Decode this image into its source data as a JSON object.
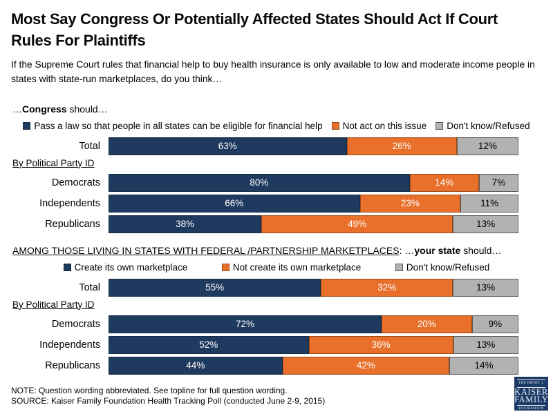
{
  "title": "Most Say Congress Or Potentially Affected States Should Act If Court Rules For Plaintiffs",
  "subtitle": "If the Supreme Court rules that financial help to buy health insurance is only available to low and moderate income people in states with state-run marketplaces, do you think…",
  "colors": {
    "segments": [
      {
        "name": "navy",
        "fill": "#1F3A5F",
        "border": "#122A45",
        "text": "#FFFFFF"
      },
      {
        "name": "orange",
        "fill": "#E8702A",
        "border": "#9E4B16",
        "text": "#FFFFFF"
      },
      {
        "name": "gray",
        "fill": "#B2B2B2",
        "border": "#595959",
        "text": "#000000"
      }
    ],
    "logo_navy": "#1B3A66"
  },
  "sections": [
    {
      "heading": [
        {
          "text": "…"
        },
        {
          "text": "Congress",
          "bold": true
        },
        {
          "text": " should…"
        }
      ],
      "legend": [
        "Pass a law so that people in all states can be eligible for financial help",
        "Not act on this issue",
        "Don't know/Refused"
      ],
      "legend_spread": false,
      "total_row": {
        "label": "Total",
        "values": [
          63,
          26,
          12
        ]
      },
      "group_label": "By Political Party ID",
      "party_rows": [
        {
          "label": "Democrats",
          "values": [
            80,
            14,
            7
          ]
        },
        {
          "label": "Independents",
          "values": [
            66,
            23,
            11
          ]
        },
        {
          "label": "Republicans",
          "values": [
            38,
            49,
            13
          ]
        }
      ]
    },
    {
      "heading": [
        {
          "text": "AMONG THOSE LIVING IN STATES WITH FEDERAL /PARTNERSHIP MARKETPLACES",
          "underline": true
        },
        {
          "text": ": …"
        },
        {
          "text": "your state",
          "bold": true
        },
        {
          "text": " should…"
        }
      ],
      "legend": [
        "Create its own marketplace",
        "Not create its own marketplace",
        "Don't know/Refused"
      ],
      "legend_spread": true,
      "total_row": {
        "label": "Total",
        "values": [
          55,
          32,
          13
        ]
      },
      "group_label": "By Political Party ID",
      "party_rows": [
        {
          "label": "Democrats",
          "values": [
            72,
            20,
            9
          ]
        },
        {
          "label": "Independents",
          "values": [
            52,
            36,
            13
          ]
        },
        {
          "label": "Republicans",
          "values": [
            44,
            42,
            14
          ]
        }
      ]
    }
  ],
  "note": "NOTE: Question wording abbreviated.  See topline for full question wording.",
  "source": "SOURCE: Kaiser Family Foundation Health Tracking Poll (conducted June 2-9, 2015)",
  "logo": {
    "line1": "THE HENRY J.",
    "line2": "KAISER",
    "line3": "FAMILY",
    "line4": "FOUNDATION"
  },
  "chart_data": [
    {
      "type": "bar",
      "stacked": true,
      "orientation": "horizontal",
      "title": "…Congress should…",
      "categories": [
        "Total",
        "Democrats",
        "Independents",
        "Republicans"
      ],
      "series": [
        {
          "name": "Pass a law so that people in all states can be eligible for financial help",
          "values": [
            63,
            80,
            66,
            38
          ]
        },
        {
          "name": "Not act on this issue",
          "values": [
            26,
            14,
            23,
            49
          ]
        },
        {
          "name": "Don't know/Refused",
          "values": [
            12,
            7,
            11,
            13
          ]
        }
      ],
      "unit": "%",
      "xlim": [
        0,
        100
      ],
      "grid": false,
      "legend_position": "top",
      "data_labels": true
    },
    {
      "type": "bar",
      "stacked": true,
      "orientation": "horizontal",
      "title": "AMONG THOSE LIVING IN STATES WITH FEDERAL /PARTNERSHIP MARKETPLACES: …your state should…",
      "categories": [
        "Total",
        "Democrats",
        "Independents",
        "Republicans"
      ],
      "series": [
        {
          "name": "Create its own marketplace",
          "values": [
            55,
            72,
            52,
            44
          ]
        },
        {
          "name": "Not create its own marketplace",
          "values": [
            32,
            20,
            36,
            42
          ]
        },
        {
          "name": "Don't know/Refused",
          "values": [
            13,
            9,
            13,
            14
          ]
        }
      ],
      "unit": "%",
      "xlim": [
        0,
        100
      ],
      "grid": false,
      "legend_position": "top",
      "data_labels": true
    }
  ]
}
